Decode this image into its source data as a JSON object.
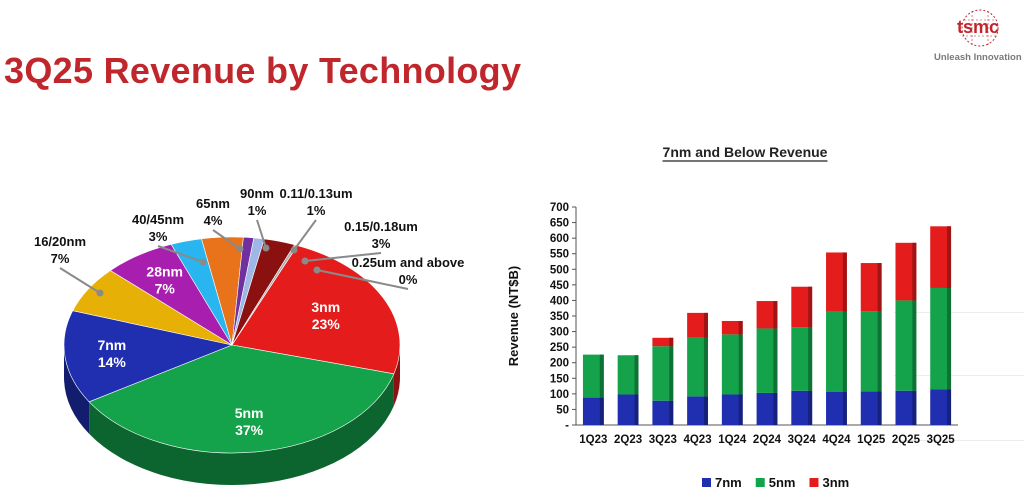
{
  "page": {
    "title": "3Q25 Revenue by Technology",
    "brand": "tsmc",
    "tagline": "Unleash Innovation"
  },
  "chart_data": [
    {
      "type": "pie",
      "title": "",
      "slices": [
        {
          "name": "3nm",
          "label": "3nm",
          "value": 23,
          "pct_label": "23%",
          "color": "#e41c1c"
        },
        {
          "name": "5nm",
          "label": "5nm",
          "value": 37,
          "pct_label": "37%",
          "color": "#14a34a"
        },
        {
          "name": "7nm",
          "label": "7nm",
          "value": 14,
          "pct_label": "14%",
          "color": "#1f2fb0"
        },
        {
          "name": "16/20nm",
          "label": "16/20nm",
          "value": 7,
          "pct_label": "7%",
          "color": "#e7b007"
        },
        {
          "name": "28nm",
          "label": "28nm",
          "value": 7,
          "pct_label": "7%",
          "color": "#a81fb0"
        },
        {
          "name": "40/45nm",
          "label": "40/45nm",
          "value": 3,
          "pct_label": "3%",
          "color": "#29b6f0"
        },
        {
          "name": "65nm",
          "label": "65nm",
          "value": 4,
          "pct_label": "4%",
          "color": "#e8731a"
        },
        {
          "name": "90nm",
          "label": "90nm",
          "value": 1,
          "pct_label": "1%",
          "color": "#7030a0"
        },
        {
          "name": "0.11/0.13um",
          "label": "0.11/0.13um",
          "value": 1,
          "pct_label": "1%",
          "color": "#9fb7e6"
        },
        {
          "name": "0.15/0.18um",
          "label": "0.15/0.18um",
          "value": 3,
          "pct_label": "3%",
          "color": "#8b1010"
        },
        {
          "name": "0.25um and above",
          "label": "0.25um and above",
          "value": 0,
          "pct_label": "0%",
          "color": "#b0b0b0"
        }
      ]
    },
    {
      "type": "bar",
      "stacked": true,
      "title": "7nm and Below Revenue",
      "ylabel": "Revenue (NT$B)",
      "xlabel": "",
      "ylim": [
        0,
        700
      ],
      "yticks": [
        "-",
        "50",
        "100",
        "150",
        "200",
        "250",
        "300",
        "350",
        "400",
        "450",
        "500",
        "550",
        "600",
        "650",
        "700"
      ],
      "categories": [
        "1Q23",
        "2Q23",
        "3Q23",
        "4Q23",
        "1Q24",
        "2Q24",
        "3Q24",
        "4Q24",
        "1Q25",
        "2Q25",
        "3Q25"
      ],
      "series": [
        {
          "name": "7nm",
          "color": "#1f2fb0",
          "values": [
            88,
            98,
            78,
            92,
            98,
            103,
            110,
            106,
            108,
            110,
            115
          ]
        },
        {
          "name": "5nm",
          "color": "#14a34a",
          "values": [
            138,
            126,
            175,
            188,
            193,
            207,
            204,
            258,
            257,
            290,
            325
          ]
        },
        {
          "name": "3nm",
          "color": "#e41c1c",
          "values": [
            0,
            0,
            27,
            80,
            43,
            88,
            130,
            190,
            155,
            185,
            198
          ]
        }
      ],
      "legend_position": "bottom"
    }
  ]
}
